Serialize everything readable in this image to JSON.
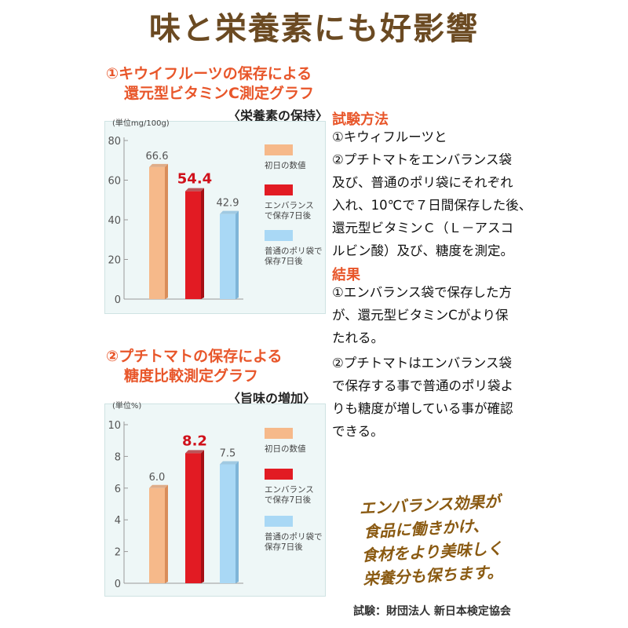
{
  "title": "味と栄養素にも好影響",
  "chart_data": [
    {
      "type": "bar",
      "title_line1": "①キウイフルーツの保存による",
      "title_line2": "還元型ビタミンC測定グラフ",
      "subtitle": "〈栄養素の保持〉",
      "unit_label": "(単位mg/100g)",
      "ylim": [
        0,
        80
      ],
      "yticks": [
        0,
        20,
        40,
        60,
        80
      ],
      "series": [
        {
          "name": "初日の数値",
          "value": 66.6,
          "label": "66.6",
          "color": "#f6b98a",
          "highlight": false
        },
        {
          "name": "エンバランスで保存7日後",
          "value": 54.4,
          "label": "54.4",
          "color": "#e21b23",
          "highlight": true
        },
        {
          "name": "普通のポリ袋で保存7日後",
          "value": 42.9,
          "label": "42.9",
          "color": "#a9d8f5",
          "highlight": false
        }
      ],
      "legend": [
        {
          "lines": [
            "初日の数値"
          ],
          "color": "#f6b98a"
        },
        {
          "lines": [
            "エンバランス",
            "で保存7日後"
          ],
          "color": "#e21b23"
        },
        {
          "lines": [
            "普通のポリ袋で",
            "保存7日後"
          ],
          "color": "#a9d8f5"
        }
      ]
    },
    {
      "type": "bar",
      "title_line1": "②プチトマトの保存による",
      "title_line2": "糖度比較測定グラフ",
      "subtitle": "〈旨味の増加〉",
      "unit_label": "(単位%)",
      "ylim": [
        0,
        10
      ],
      "yticks": [
        0,
        2,
        4,
        6,
        8,
        10
      ],
      "series": [
        {
          "name": "初日の数値",
          "value": 6.0,
          "label": "6.0",
          "color": "#f6b98a",
          "highlight": false
        },
        {
          "name": "エンバランスで保存7日後",
          "value": 8.2,
          "label": "8.2",
          "color": "#e21b23",
          "highlight": true
        },
        {
          "name": "普通のポリ袋で保存7日後",
          "value": 7.5,
          "label": "7.5",
          "color": "#a9d8f5",
          "highlight": false
        }
      ],
      "legend": [
        {
          "lines": [
            "初日の数値"
          ],
          "color": "#f6b98a"
        },
        {
          "lines": [
            "エンバランス",
            "で保存7日後"
          ],
          "color": "#e21b23"
        },
        {
          "lines": [
            "普通のポリ袋で",
            "保存7日後"
          ],
          "color": "#a9d8f5"
        }
      ]
    }
  ],
  "method": {
    "heading": "試験方法",
    "lines": [
      "①キウィフルーツと",
      "②プチトマトをエンバランス袋",
      "及び、普通のポリ袋にそれぞれ",
      "入れ、10℃で７日間保存した後、",
      "還元型ビタミンＣ（Ｌ－アスコ",
      "ルビン酸）及び、糖度を測定。"
    ]
  },
  "result": {
    "heading": "結果",
    "para1": [
      "①エンバランス袋で保存した方",
      "が、還元型ビタミンCがより保",
      "たれる。"
    ],
    "para2": [
      "②プチトマトはエンバランス袋",
      "で保存する事で普通のポリ袋よ",
      "りも糖度が増している事が確認",
      "できる。"
    ]
  },
  "callout": [
    "エンバランス効果が",
    "食品に働きかけ、",
    "食材をより美味しく",
    "栄養分も保ちます。"
  ],
  "credit": "試験：財団法人 新日本検定協会"
}
